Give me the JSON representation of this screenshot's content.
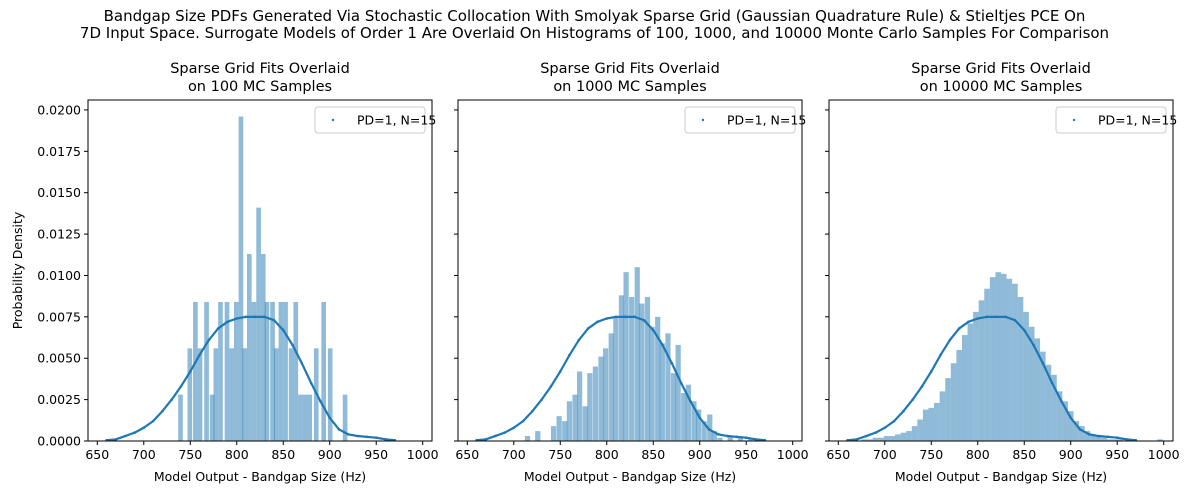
{
  "figure": {
    "suptitle_line1": "Bandgap Size PDFs Generated Via Stochastic Collocation With Smolyak Sparse Grid (Gaussian Quadrature Rule) & Stieltjes PCE On",
    "suptitle_line2": "7D Input Space. Surrogate Models of Order 1 Are Overlaid On Histograms of 100, 1000, and 10000 Monte Carlo Samples For Comparison",
    "colors": {
      "histogram": "#1f77b4",
      "histogram_alpha": 0.5,
      "curve": "#1f77b4"
    }
  },
  "chart_data": [
    {
      "type": "bar",
      "title_line1": "Sparse Grid Fits Overlaid",
      "title_line2": "on 100 MC Samples",
      "xlabel": "Model Output - Bandgap Size (Hz)",
      "ylabel": "Probability Density",
      "xlim": [
        640,
        1010
      ],
      "ylim": [
        0,
        0.0206
      ],
      "xticks": [
        650,
        700,
        750,
        800,
        850,
        900,
        950,
        1000
      ],
      "yticks": [
        0.0,
        0.0025,
        0.005,
        0.0075,
        0.01,
        0.0125,
        0.015,
        0.0175,
        0.02
      ],
      "ytick_labels": [
        "0.0000",
        "0.0025",
        "0.0050",
        "0.0075",
        "0.0100",
        "0.0125",
        "0.0150",
        "0.0175",
        "0.0200"
      ],
      "show_yticklabels": true,
      "legend": {
        "label": "PD=1, N=15",
        "location": "upper right"
      },
      "histogram": {
        "bin_width": 5,
        "bins": [
          [
            737,
            0.0028
          ],
          [
            747,
            0.0056
          ],
          [
            753,
            0.0084
          ],
          [
            758,
            0.0056
          ],
          [
            765,
            0.0084
          ],
          [
            771,
            0.0028
          ],
          [
            775,
            0.0056
          ],
          [
            780,
            0.0084
          ],
          [
            787,
            0.0084
          ],
          [
            792,
            0.0056
          ],
          [
            797,
            0.0084
          ],
          [
            802,
            0.0196
          ],
          [
            806,
            0.0056
          ],
          [
            811,
            0.0113
          ],
          [
            816,
            0.0084
          ],
          [
            821,
            0.0141
          ],
          [
            826,
            0.0113
          ],
          [
            830,
            0.0084
          ],
          [
            836,
            0.0084
          ],
          [
            840,
            0.0056
          ],
          [
            845,
            0.0084
          ],
          [
            850,
            0.0084
          ],
          [
            856,
            0.0056
          ],
          [
            861,
            0.0084
          ],
          [
            866,
            0.0028
          ],
          [
            871,
            0.0028
          ],
          [
            876,
            0.0028
          ],
          [
            883,
            0.0056
          ],
          [
            891,
            0.0084
          ],
          [
            898,
            0.0056
          ],
          [
            914,
            0.0028
          ]
        ]
      },
      "curve": {
        "name": "PD=1, N=15",
        "x": [
          660,
          670,
          680,
          690,
          700,
          710,
          720,
          730,
          740,
          750,
          760,
          770,
          780,
          790,
          800,
          810,
          820,
          830,
          840,
          850,
          860,
          870,
          880,
          890,
          900,
          910,
          920,
          930,
          940,
          950,
          960,
          970
        ],
        "y": [
          5e-05,
          0.0001,
          0.0003,
          0.0005,
          0.0008,
          0.0012,
          0.0018,
          0.0025,
          0.0033,
          0.0042,
          0.0052,
          0.0061,
          0.0068,
          0.0072,
          0.0074,
          0.0075,
          0.0075,
          0.0075,
          0.0073,
          0.0067,
          0.0058,
          0.0047,
          0.0035,
          0.0024,
          0.0014,
          0.0007,
          0.0004,
          0.0003,
          0.00025,
          0.0002,
          0.0001,
          5e-05
        ]
      }
    },
    {
      "type": "bar",
      "title_line1": "Sparse Grid Fits Overlaid",
      "title_line2": "on 1000 MC Samples",
      "xlabel": "Model Output - Bandgap Size (Hz)",
      "ylabel": "",
      "xlim": [
        640,
        1010
      ],
      "ylim": [
        0,
        0.0206
      ],
      "xticks": [
        650,
        700,
        750,
        800,
        850,
        900,
        950,
        1000
      ],
      "yticks": [
        0.0,
        0.0025,
        0.005,
        0.0075,
        0.01,
        0.0125,
        0.015,
        0.0175,
        0.02
      ],
      "ytick_labels": [],
      "show_yticklabels": false,
      "legend": {
        "label": "PD=1, N=15",
        "location": "upper right"
      },
      "histogram": {
        "bin_width": 5.6,
        "bins": [
          [
            712,
            0.0003
          ],
          [
            723,
            0.0006
          ],
          [
            740,
            0.0009
          ],
          [
            746,
            0.0015
          ],
          [
            752,
            0.0012
          ],
          [
            757,
            0.0024
          ],
          [
            763,
            0.0028
          ],
          [
            768,
            0.0042
          ],
          [
            774,
            0.0021
          ],
          [
            779,
            0.0041
          ],
          [
            785,
            0.0045
          ],
          [
            791,
            0.0051
          ],
          [
            796,
            0.0056
          ],
          [
            802,
            0.0065
          ],
          [
            807,
            0.0075
          ],
          [
            813,
            0.0088
          ],
          [
            818,
            0.0102
          ],
          [
            824,
            0.0087
          ],
          [
            830,
            0.0105
          ],
          [
            835,
            0.0083
          ],
          [
            841,
            0.0087
          ],
          [
            846,
            0.0069
          ],
          [
            852,
            0.0075
          ],
          [
            857,
            0.0059
          ],
          [
            863,
            0.0065
          ],
          [
            869,
            0.0041
          ],
          [
            874,
            0.0058
          ],
          [
            880,
            0.0029
          ],
          [
            885,
            0.0034
          ],
          [
            891,
            0.0024
          ],
          [
            896,
            0.0019
          ],
          [
            902,
            0.0012
          ],
          [
            908,
            0.0016
          ],
          [
            913,
            0.0006
          ],
          [
            919,
            0.0002
          ],
          [
            930,
            0.0003
          ],
          [
            941,
            0.0002
          ],
          [
            952,
            0.0002
          ]
        ]
      },
      "curve": {
        "name": "PD=1, N=15",
        "x": [
          660,
          670,
          680,
          690,
          700,
          710,
          720,
          730,
          740,
          750,
          760,
          770,
          780,
          790,
          800,
          810,
          820,
          830,
          840,
          850,
          860,
          870,
          880,
          890,
          900,
          910,
          920,
          930,
          940,
          950,
          960,
          970
        ],
        "y": [
          5e-05,
          0.0001,
          0.0003,
          0.0005,
          0.0008,
          0.0012,
          0.0018,
          0.0025,
          0.0033,
          0.0042,
          0.0052,
          0.0061,
          0.0068,
          0.0072,
          0.0074,
          0.0075,
          0.0075,
          0.0075,
          0.0073,
          0.0067,
          0.0058,
          0.0047,
          0.0035,
          0.0024,
          0.0014,
          0.0007,
          0.0004,
          0.0003,
          0.00025,
          0.0002,
          0.0001,
          5e-05
        ]
      }
    },
    {
      "type": "bar",
      "title_line1": "Sparse Grid Fits Overlaid",
      "title_line2": "on 10000 MC Samples",
      "xlabel": "Model Output - Bandgap Size (Hz)",
      "ylabel": "",
      "xlim": [
        640,
        1010
      ],
      "ylim": [
        0,
        0.0206
      ],
      "xticks": [
        650,
        700,
        750,
        800,
        850,
        900,
        950,
        1000
      ],
      "yticks": [
        0.0,
        0.0025,
        0.005,
        0.0075,
        0.01,
        0.0125,
        0.015,
        0.0175,
        0.02
      ],
      "ytick_labels": [],
      "show_yticklabels": false,
      "legend": {
        "label": "PD=1, N=15",
        "location": "upper right"
      },
      "histogram": {
        "bin_width": 6,
        "bins": [
          [
            675,
            0.0001
          ],
          [
            681,
            0.0001
          ],
          [
            687,
            0.0002
          ],
          [
            693,
            0.0002
          ],
          [
            699,
            0.0003
          ],
          [
            705,
            0.0003
          ],
          [
            711,
            0.0004
          ],
          [
            717,
            0.0005
          ],
          [
            723,
            0.0006
          ],
          [
            729,
            0.0009
          ],
          [
            735,
            0.0013
          ],
          [
            741,
            0.0019
          ],
          [
            747,
            0.002
          ],
          [
            753,
            0.0023
          ],
          [
            759,
            0.003
          ],
          [
            765,
            0.0038
          ],
          [
            771,
            0.0047
          ],
          [
            777,
            0.0055
          ],
          [
            783,
            0.0064
          ],
          [
            789,
            0.0071
          ],
          [
            795,
            0.0078
          ],
          [
            801,
            0.0085
          ],
          [
            807,
            0.0092
          ],
          [
            813,
            0.0099
          ],
          [
            819,
            0.0102
          ],
          [
            825,
            0.0101
          ],
          [
            831,
            0.0098
          ],
          [
            837,
            0.0095
          ],
          [
            843,
            0.0087
          ],
          [
            849,
            0.0078
          ],
          [
            855,
            0.0069
          ],
          [
            861,
            0.0062
          ],
          [
            867,
            0.0054
          ],
          [
            873,
            0.0046
          ],
          [
            879,
            0.004
          ],
          [
            885,
            0.003
          ],
          [
            891,
            0.0024
          ],
          [
            897,
            0.0018
          ],
          [
            903,
            0.0012
          ],
          [
            909,
            0.0009
          ],
          [
            915,
            0.0006
          ],
          [
            921,
            0.0004
          ],
          [
            927,
            0.0003
          ],
          [
            933,
            0.0002
          ],
          [
            939,
            0.0001
          ],
          [
            945,
            0.0001
          ],
          [
            951,
            0.0001
          ],
          [
            993,
            0.0001
          ]
        ]
      },
      "curve": {
        "name": "PD=1, N=15",
        "x": [
          660,
          670,
          680,
          690,
          700,
          710,
          720,
          730,
          740,
          750,
          760,
          770,
          780,
          790,
          800,
          810,
          820,
          830,
          840,
          850,
          860,
          870,
          880,
          890,
          900,
          910,
          920,
          930,
          940,
          950,
          960,
          970
        ],
        "y": [
          5e-05,
          0.0001,
          0.0003,
          0.0005,
          0.0008,
          0.0012,
          0.0018,
          0.0025,
          0.0033,
          0.0042,
          0.0052,
          0.0061,
          0.0068,
          0.0072,
          0.0074,
          0.0075,
          0.0075,
          0.0075,
          0.0073,
          0.0067,
          0.0058,
          0.0047,
          0.0035,
          0.0024,
          0.0014,
          0.0007,
          0.0004,
          0.0003,
          0.00025,
          0.0002,
          0.0001,
          5e-05
        ]
      }
    }
  ]
}
